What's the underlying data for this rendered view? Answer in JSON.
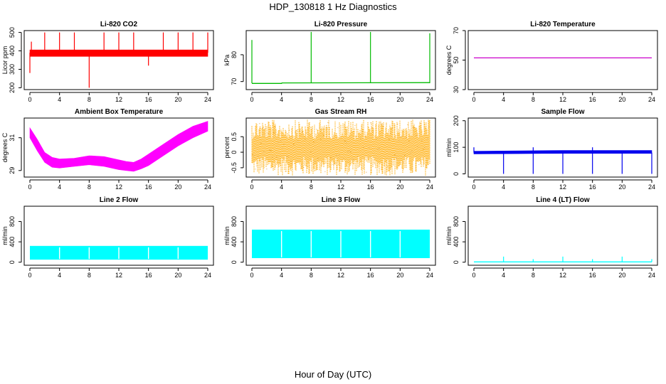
{
  "title": "HDP_130818  1 Hz Diagnostics",
  "xlabel": "Hour of Day (UTC)",
  "chart_data": [
    {
      "type": "line",
      "title": "Li-820 CO2",
      "ylabel": "Licor ppm",
      "color": "#ff0000",
      "xlim": [
        0,
        24
      ],
      "ylim": [
        190,
        510
      ],
      "xticks": [
        0,
        4,
        8,
        12,
        16,
        20,
        24
      ],
      "yticks": [
        200,
        300,
        400,
        500
      ],
      "series": [
        {
          "kind": "band",
          "x": [
            0,
            24
          ],
          "low": [
            370,
            370
          ],
          "high": [
            405,
            405
          ]
        },
        {
          "kind": "spikes",
          "x": [
            0.0,
            0.2,
            2.0,
            4.0,
            6.0,
            8.0,
            10.0,
            12.0,
            14.0,
            16.0,
            18.0,
            20.0,
            22.0,
            24.0
          ],
          "base": 390,
          "y": [
            280,
            450,
            500,
            500,
            500,
            200,
            500,
            500,
            500,
            320,
            500,
            500,
            500,
            500
          ]
        }
      ]
    },
    {
      "type": "line",
      "title": "Li-820 Pressure",
      "ylabel": "kPa",
      "color": "#00bb00",
      "xlim": [
        0,
        24
      ],
      "ylim": [
        67,
        89
      ],
      "xticks": [
        0,
        4,
        8,
        12,
        16,
        20,
        24
      ],
      "yticks": [
        70,
        80
      ],
      "series": [
        {
          "kind": "line",
          "x": [
            0,
            4,
            4.05,
            24
          ],
          "y": [
            69.3,
            69.3,
            69.5,
            69.6
          ]
        },
        {
          "kind": "spikes",
          "x": [
            0.0,
            8.0,
            16.0,
            24.0
          ],
          "base": 69.4,
          "y": [
            85.5,
            88.5,
            88.5,
            88.0
          ]
        }
      ]
    },
    {
      "type": "line",
      "title": "Li-820 Temperature",
      "ylabel": "degrees C",
      "color": "#cc00cc",
      "xlim": [
        0,
        24
      ],
      "ylim": [
        30,
        70
      ],
      "xticks": [
        0,
        4,
        8,
        12,
        16,
        20,
        24
      ],
      "yticks": [
        30,
        50,
        70
      ],
      "series": [
        {
          "kind": "line",
          "x": [
            0,
            24
          ],
          "y": [
            51.5,
            51.5
          ]
        }
      ]
    },
    {
      "type": "area",
      "title": "Ambient Box Temperature",
      "ylabel": "degrees C",
      "color": "#ff00ff",
      "xlim": [
        0,
        24
      ],
      "ylim": [
        28.6,
        32.2
      ],
      "xticks": [
        0,
        4,
        8,
        12,
        16,
        20,
        24
      ],
      "yticks": [
        29,
        31
      ],
      "series": [
        {
          "kind": "band",
          "x": [
            0,
            1,
            2,
            3,
            4,
            6,
            8,
            10,
            12,
            13,
            14,
            15,
            16,
            18,
            20,
            22,
            24
          ],
          "low": [
            31.0,
            30.2,
            29.5,
            29.2,
            29.15,
            29.25,
            29.35,
            29.25,
            29.05,
            29.0,
            28.95,
            29.1,
            29.3,
            29.9,
            30.5,
            31.0,
            31.4
          ],
          "high": [
            31.6,
            30.9,
            30.1,
            29.8,
            29.7,
            29.75,
            29.9,
            29.85,
            29.65,
            29.55,
            29.5,
            29.7,
            30.0,
            30.6,
            31.2,
            31.7,
            32.0
          ]
        }
      ]
    },
    {
      "type": "area",
      "title": "Gas Stream RH",
      "ylabel": "percent",
      "color": "#ffaa00",
      "xlim": [
        0,
        24
      ],
      "ylim": [
        -0.8,
        1.1
      ],
      "xticks": [
        0,
        4,
        8,
        12,
        16,
        20,
        24
      ],
      "yticks": [
        -0.5,
        0.0,
        0.5
      ],
      "series": [
        {
          "kind": "noise",
          "x": [
            0,
            24
          ],
          "low": -0.75,
          "high": 1.05
        }
      ]
    },
    {
      "type": "line",
      "title": "Sample Flow",
      "ylabel": "ml/min",
      "color": "#0000ee",
      "xlim": [
        0,
        24
      ],
      "ylim": [
        -12,
        210
      ],
      "xticks": [
        0,
        4,
        8,
        12,
        16,
        20,
        24
      ],
      "yticks": [
        0,
        100,
        200
      ],
      "series": [
        {
          "kind": "band",
          "x": [
            0,
            12,
            24
          ],
          "low": [
            75,
            77,
            77
          ],
          "high": [
            85,
            88,
            88
          ]
        },
        {
          "kind": "spikes",
          "x": [
            0.0,
            4.0,
            8.0,
            12.0,
            16.0,
            20.0,
            24.0
          ],
          "base": 80,
          "y": [
            100,
            0,
            0,
            0,
            0,
            0,
            0
          ]
        },
        {
          "kind": "spikes",
          "x": [
            8.0,
            16.0
          ],
          "base": 80,
          "y": [
            100,
            100
          ]
        }
      ]
    },
    {
      "type": "area",
      "title": "Line 2 Flow",
      "ylabel": "ml/min",
      "color": "#00ffff",
      "xlim": [
        0,
        24
      ],
      "ylim": [
        -60,
        1100
      ],
      "xticks": [
        0,
        4,
        8,
        12,
        16,
        20,
        24
      ],
      "yticks": [
        0,
        400,
        800
      ],
      "series": [
        {
          "kind": "block",
          "x": [
            0,
            24
          ],
          "low": 50,
          "high": 320,
          "gaps": [
            4,
            8,
            12,
            16,
            20
          ]
        }
      ]
    },
    {
      "type": "area",
      "title": "Line 3 Flow",
      "ylabel": "ml/min",
      "color": "#00ffff",
      "xlim": [
        0,
        24
      ],
      "ylim": [
        -60,
        1100
      ],
      "xticks": [
        0,
        4,
        8,
        12,
        16,
        20,
        24
      ],
      "yticks": [
        0,
        400,
        800
      ],
      "series": [
        {
          "kind": "block",
          "x": [
            0,
            24
          ],
          "low": 80,
          "high": 640,
          "gaps": [
            4,
            8,
            12,
            16,
            20
          ]
        }
      ]
    },
    {
      "type": "line",
      "title": "Line 4 (LT) Flow",
      "ylabel": "ml/min",
      "color": "#00ffff",
      "xlim": [
        0,
        24
      ],
      "ylim": [
        -60,
        1100
      ],
      "xticks": [
        0,
        4,
        8,
        12,
        16,
        20,
        24
      ],
      "yticks": [
        0,
        400,
        800
      ],
      "series": [
        {
          "kind": "line",
          "x": [
            0,
            24
          ],
          "y": [
            5,
            5
          ]
        },
        {
          "kind": "spikes",
          "x": [
            4.0,
            8.0,
            12.0,
            16.0,
            20.0,
            24.0
          ],
          "base": 5,
          "y": [
            110,
            60,
            110,
            60,
            110,
            60
          ]
        }
      ]
    }
  ]
}
